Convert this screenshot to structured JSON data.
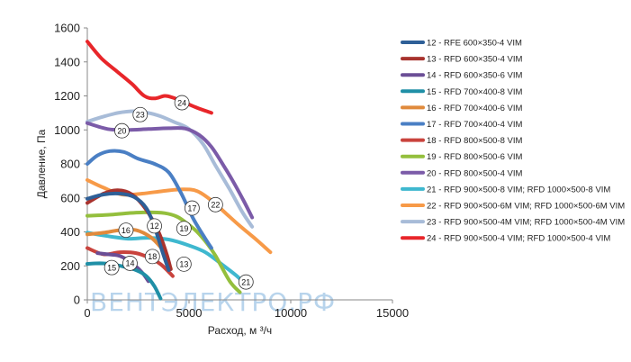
{
  "chart_data": {
    "type": "line",
    "title": "",
    "xlabel": "Расход, м ³/ч",
    "ylabel": "Давление, Па",
    "xlim": [
      0,
      15000
    ],
    "ylim": [
      0,
      1600
    ],
    "xticks": [
      0,
      5000,
      10000,
      15000
    ],
    "yticks": [
      0,
      200,
      400,
      600,
      800,
      1000,
      1200,
      1400,
      1600
    ],
    "grid": false,
    "legend_position": "right",
    "watermark": "ВЕНТЭЛЕКТРО.РФ",
    "colors": {
      "12": "#2e5f97",
      "13": "#a8332e",
      "14": "#6b4e96",
      "15": "#1f8fa6",
      "16": "#e08a3c",
      "17": "#4a7fc4",
      "18": "#c9433d",
      "19": "#94bf3d",
      "20": "#7b5ba8",
      "21": "#3fb8cf",
      "22": "#f79a48",
      "23": "#a8bcd8",
      "24": "#e8262a"
    },
    "series": [
      {
        "name": "12 - RFE 600×350-4 VIM",
        "tag": "12",
        "color": "#2e5f97",
        "x": [
          0,
          800,
          1600,
          2300,
          2900,
          3300,
          3700,
          4000
        ],
        "y": [
          595,
          620,
          625,
          605,
          540,
          430,
          280,
          175
        ]
      },
      {
        "name": "13 - RFD 600×350-4 VIM",
        "tag": "13",
        "color": "#a8332e",
        "x": [
          0,
          800,
          1500,
          2200,
          2900,
          3500,
          3900,
          4100
        ],
        "y": [
          570,
          625,
          645,
          620,
          530,
          400,
          270,
          180
        ]
      },
      {
        "name": "14 - RFD 600×350-6 VIM",
        "tag": "14",
        "color": "#6b4e96",
        "x": [
          500,
          1000,
          1600,
          2200,
          2700,
          3000
        ],
        "y": [
          275,
          268,
          258,
          215,
          160,
          110
        ]
      },
      {
        "name": "15 - RFD 700×400-8 VIM",
        "tag": "15",
        "color": "#1f8fa6",
        "x": [
          0,
          600,
          1200,
          1800,
          2400,
          2900,
          3300,
          3600
        ],
        "y": [
          212,
          215,
          210,
          195,
          175,
          140,
          80,
          8
        ]
      },
      {
        "name": "16 - RFD 700×400-6 VIM",
        "tag": "16",
        "color": "#e08a3c",
        "x": [
          0,
          800,
          1600,
          2400,
          3100,
          3600,
          3900,
          4100
        ],
        "y": [
          385,
          395,
          410,
          410,
          370,
          310,
          250,
          185
        ]
      },
      {
        "name": "17 - RFD 700×400-4 VIM",
        "tag": "17",
        "color": "#4a7fc4",
        "x": [
          0,
          500,
          1100,
          1800,
          2500,
          3300,
          4000,
          4600,
          5200,
          5800,
          6100
        ],
        "y": [
          800,
          850,
          875,
          870,
          830,
          800,
          750,
          630,
          480,
          360,
          305
        ]
      },
      {
        "name": "18 - RFD 800×500-8 VIM",
        "tag": "18",
        "color": "#c9433d",
        "x": [
          0,
          800,
          1600,
          2400,
          3100,
          3600,
          4000,
          4200
        ],
        "y": [
          305,
          268,
          280,
          275,
          245,
          210,
          165,
          140
        ]
      },
      {
        "name": "19 - RFD 800×500-6 VIM",
        "tag": "19",
        "color": "#94bf3d",
        "x": [
          0,
          1000,
          2000,
          3000,
          3800,
          4400,
          4900,
          5400,
          5900,
          6300,
          7000,
          7500
        ],
        "y": [
          495,
          500,
          510,
          515,
          510,
          490,
          450,
          400,
          330,
          260,
          110,
          45
        ]
      },
      {
        "name": "20 - RFD 800×500-4 VIM",
        "tag": "20",
        "color": "#7b5ba8",
        "x": [
          0,
          1000,
          2000,
          3000,
          4000,
          4800,
          5500,
          6100,
          6700,
          7200,
          7700,
          8100
        ],
        "y": [
          1040,
          1005,
          1000,
          1005,
          1010,
          1008,
          970,
          900,
          790,
          690,
          580,
          485
        ]
      },
      {
        "name": "21 - RFD 900×500-8 VIM; RFD 1000×500-8 VIM",
        "tag": "21",
        "color": "#3fb8cf",
        "x": [
          0,
          1000,
          2000,
          3000,
          4000,
          5000,
          5800,
          6600,
          7300,
          7800
        ],
        "y": [
          395,
          375,
          360,
          365,
          355,
          320,
          280,
          210,
          145,
          90
        ]
      },
      {
        "name": "22 - RFD 900×500-6M VIM; RFD 1000×500-6M VIM",
        "tag": "22",
        "color": "#f79a48",
        "x": [
          0,
          800,
          1700,
          2700,
          3700,
          4700,
          5400,
          6100,
          6800,
          7500,
          8300,
          9000
        ],
        "y": [
          705,
          660,
          620,
          625,
          640,
          650,
          640,
          585,
          510,
          435,
          355,
          280
        ]
      },
      {
        "name": "23 - RFD 900×500-4M VIM; RFD 1000×500-4M VIM",
        "tag": "23",
        "color": "#a8bcd8",
        "x": [
          0,
          700,
          1500,
          2300,
          3000,
          3600,
          4300,
          5000,
          5700,
          6300,
          7000,
          7600,
          8100
        ],
        "y": [
          1048,
          1075,
          1100,
          1110,
          1100,
          1080,
          1045,
          1005,
          915,
          790,
          650,
          520,
          430
        ]
      },
      {
        "name": "24 - RFD 900×500-4 VIM; RFD 1000×500-4 VIM",
        "tag": "24",
        "color": "#e8262a",
        "x": [
          0,
          700,
          1500,
          2200,
          2800,
          3300,
          3800,
          4200,
          4800,
          5400,
          6100
        ],
        "y": [
          1520,
          1420,
          1340,
          1270,
          1200,
          1185,
          1200,
          1190,
          1160,
          1130,
          1100
        ]
      }
    ],
    "curve_labels": [
      {
        "tag": "23",
        "x": 2600,
        "y": 1090
      },
      {
        "tag": "24",
        "x": 4650,
        "y": 1160
      },
      {
        "tag": "20",
        "x": 1700,
        "y": 995
      },
      {
        "tag": "22",
        "x": 6300,
        "y": 560
      },
      {
        "tag": "17",
        "x": 5150,
        "y": 540
      },
      {
        "tag": "12",
        "x": 3300,
        "y": 435
      },
      {
        "tag": "16",
        "x": 1900,
        "y": 410
      },
      {
        "tag": "19",
        "x": 4750,
        "y": 420
      },
      {
        "tag": "18",
        "x": 3200,
        "y": 255
      },
      {
        "tag": "14",
        "x": 2100,
        "y": 215
      },
      {
        "tag": "15",
        "x": 1200,
        "y": 190
      },
      {
        "tag": "13",
        "x": 4750,
        "y": 210
      },
      {
        "tag": "21",
        "x": 7800,
        "y": 105
      }
    ]
  }
}
